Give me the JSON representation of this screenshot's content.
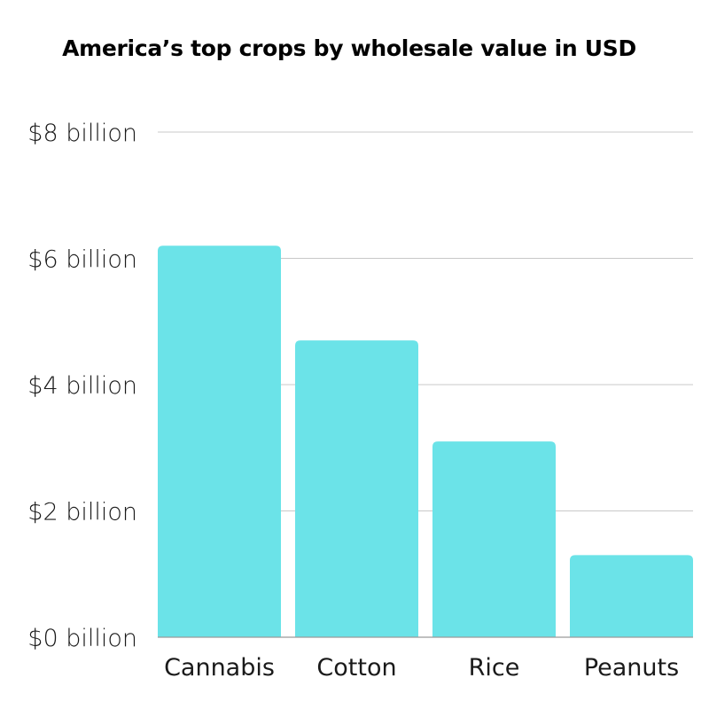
{
  "chart_data": {
    "type": "bar",
    "title": "America’s top crops by wholesale value in USD",
    "categories": [
      "Cannabis",
      "Cotton",
      "Rice",
      "Peanuts"
    ],
    "values": [
      6.2,
      4.7,
      3.1,
      1.3
    ],
    "value_unit": "billion USD",
    "ylim": [
      0,
      8
    ],
    "yticks": [
      0,
      2,
      4,
      6,
      8
    ],
    "ytick_labels": [
      "$0 billion",
      "$2 billion",
      "$4 billion",
      "$6 billion",
      "$8 billion"
    ],
    "xlabel": "",
    "ylabel": "",
    "grid": true,
    "legend": "none",
    "bar_color": "#6be3e8",
    "grid_color": "#c8c8c8"
  }
}
